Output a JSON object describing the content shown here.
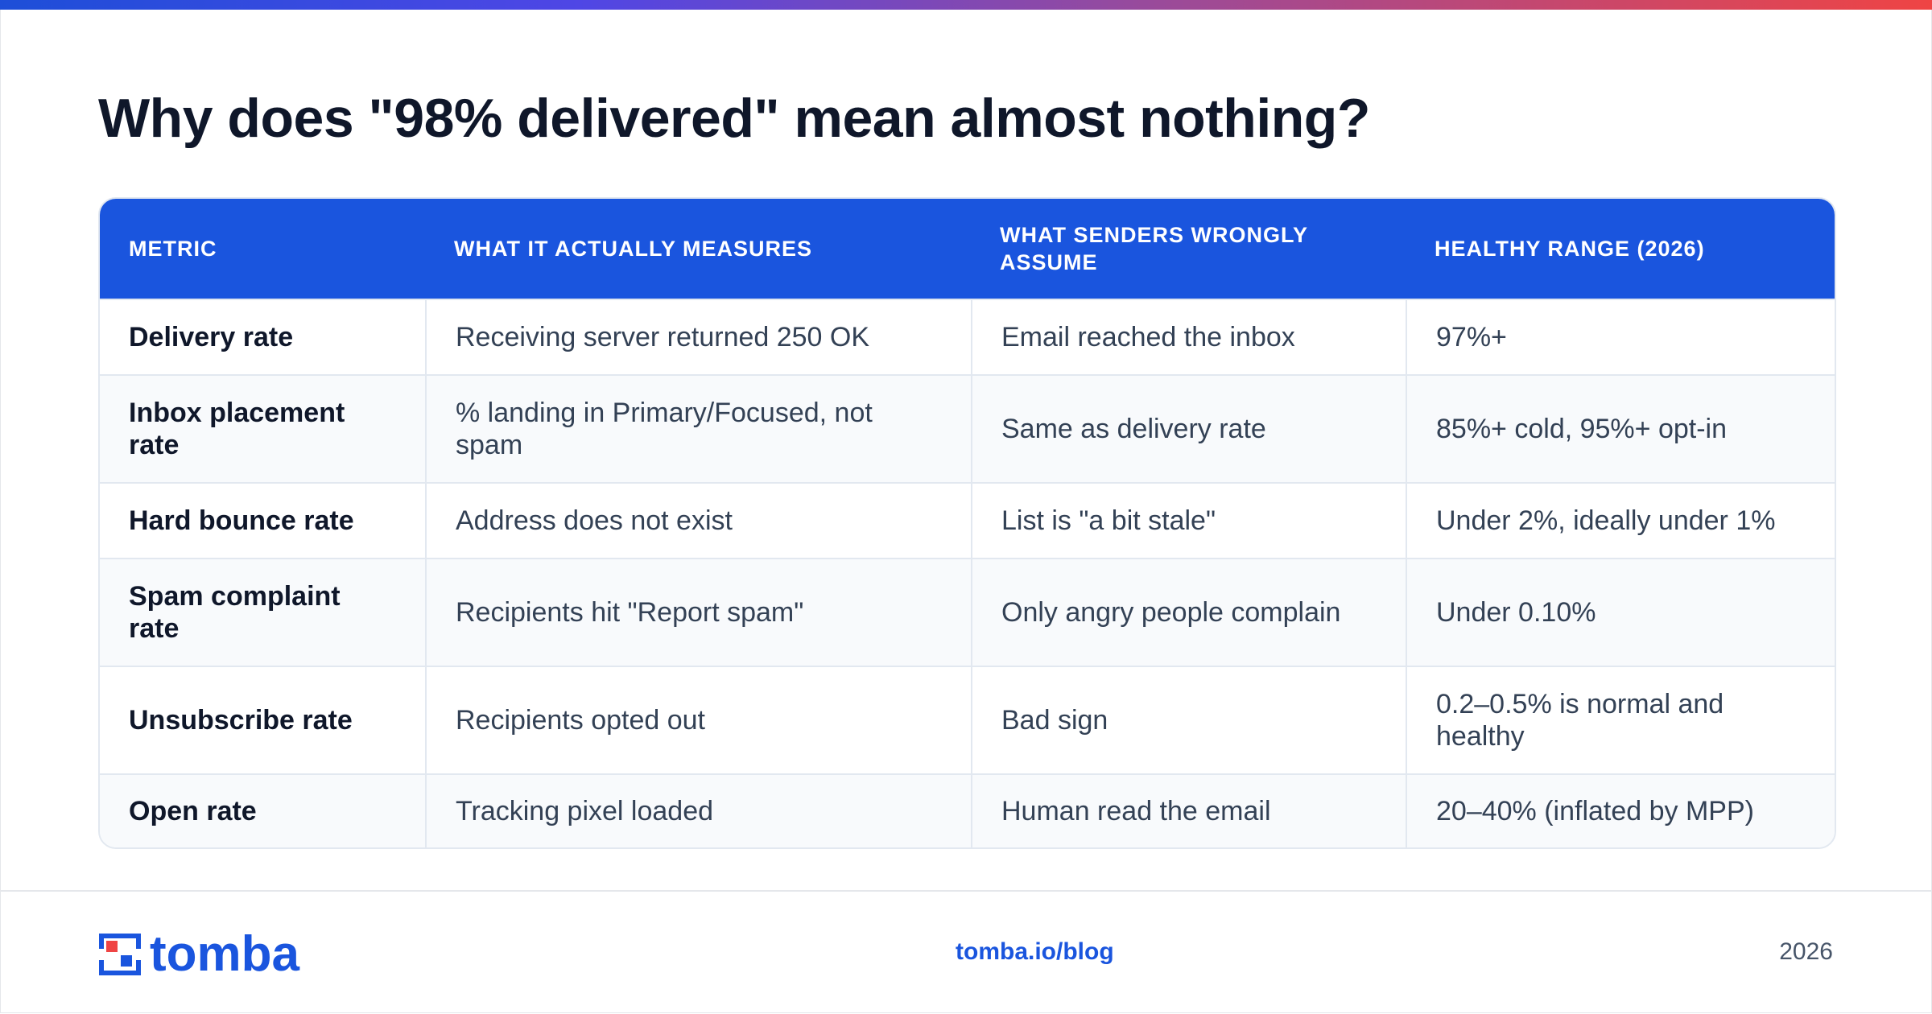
{
  "title": "Why does \"98% delivered\" mean almost nothing?",
  "table": {
    "headers": [
      "METRIC",
      "WHAT IT ACTUALLY MEASURES",
      "WHAT SENDERS WRONGLY ASSUME",
      "HEALTHY RANGE (2026)"
    ],
    "rows": [
      [
        "Delivery rate",
        "Receiving server returned 250 OK",
        "Email reached the inbox",
        "97%+"
      ],
      [
        "Inbox placement rate",
        "% landing in Primary/Focused, not spam",
        "Same as delivery rate",
        "85%+ cold, 95%+ opt-in"
      ],
      [
        "Hard bounce rate",
        "Address does not exist",
        "List is \"a bit stale\"",
        "Under 2%, ideally under 1%"
      ],
      [
        "Spam complaint rate",
        "Recipients hit \"Report spam\"",
        "Only angry people complain",
        "Under 0.10%"
      ],
      [
        "Unsubscribe rate",
        "Recipients opted out",
        "Bad sign",
        "0.2–0.5% is normal and healthy"
      ],
      [
        "Open rate",
        "Tracking pixel loaded",
        "Human read the email",
        "20–40% (inflated by MPP)"
      ]
    ]
  },
  "footer": {
    "logo_text": "tomba",
    "link": "tomba.io/blog",
    "year": "2026"
  },
  "colors": {
    "brand_blue": "#1a55de",
    "heading": "#0f172a",
    "body_text": "#334155",
    "row_alt": "#f8fafc",
    "border": "#e2e8f0"
  },
  "icons": {
    "logo_mark": "tomba-logo-icon"
  }
}
